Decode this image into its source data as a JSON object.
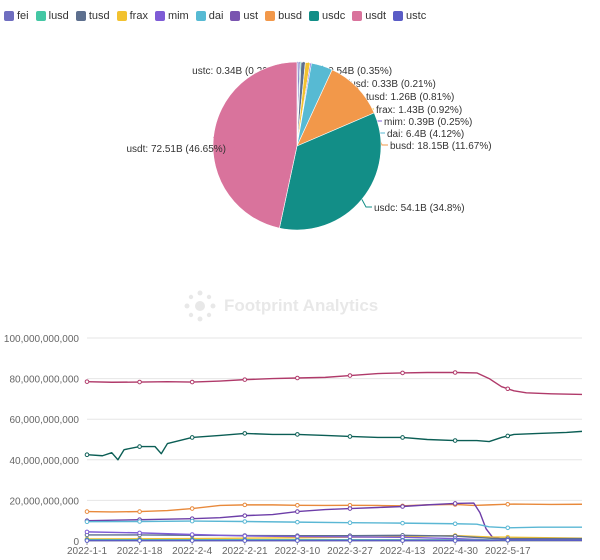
{
  "brand": {
    "watermark": "Footprint Analytics"
  },
  "legend": [
    {
      "name": "fei",
      "color": "#6f6ec0"
    },
    {
      "name": "lusd",
      "color": "#44c7a4"
    },
    {
      "name": "tusd",
      "color": "#5d6f8e"
    },
    {
      "name": "frax",
      "color": "#f2c230"
    },
    {
      "name": "mim",
      "color": "#7e5cd6"
    },
    {
      "name": "dai",
      "color": "#57bad3"
    },
    {
      "name": "ust",
      "color": "#7a55b0"
    },
    {
      "name": "busd",
      "color": "#f2984a"
    },
    {
      "name": "usdc",
      "color": "#128e87"
    },
    {
      "name": "usdt",
      "color": "#d9739c"
    },
    {
      "name": "ustc",
      "color": "#5a5cc6"
    }
  ],
  "chart_data": [
    {
      "type": "pie",
      "slices": [
        {
          "name": "ustc",
          "value": 0.34,
          "pct": 0.22,
          "label": "ustc: 0.34B (0.22%)",
          "color": "#5a5cc6"
        },
        {
          "name": "fei",
          "value": 0.54,
          "pct": 0.35,
          "label": "fei: 0.54B (0.35%)",
          "color": "#6f6ec0"
        },
        {
          "name": "lusd",
          "value": 0.33,
          "pct": 0.21,
          "label": "lusd: 0.33B (0.21%)",
          "color": "#44c7a4"
        },
        {
          "name": "tusd",
          "value": 1.26,
          "pct": 0.81,
          "label": "tusd: 1.26B (0.81%)",
          "color": "#5d6f8e"
        },
        {
          "name": "frax",
          "value": 1.43,
          "pct": 0.92,
          "label": "frax: 1.43B (0.92%)",
          "color": "#f2c230"
        },
        {
          "name": "mim",
          "value": 0.39,
          "pct": 0.25,
          "label": "mim: 0.39B (0.25%)",
          "color": "#7e5cd6"
        },
        {
          "name": "dai",
          "value": 6.4,
          "pct": 4.12,
          "label": "dai: 6.4B (4.12%)",
          "color": "#57bad3"
        },
        {
          "name": "busd",
          "value": 18.15,
          "pct": 11.67,
          "label": "busd: 18.15B (11.67%)",
          "color": "#f2984a"
        },
        {
          "name": "usdc",
          "value": 54.1,
          "pct": 34.8,
          "label": "usdc: 54.1B (34.8%)",
          "color": "#128e87"
        },
        {
          "name": "usdt",
          "value": 72.51,
          "pct": 46.65,
          "label": "usdt: 72.51B (46.65%)",
          "color": "#d9739c"
        }
      ]
    },
    {
      "type": "line",
      "x_labels": [
        "2022-1-1",
        "2022-1-18",
        "2022-2-4",
        "2022-2-21",
        "2022-3-10",
        "2022-3-27",
        "2022-4-13",
        "2022-4-30",
        "2022-5-17"
      ],
      "y_ticks": [
        0,
        20000000000,
        40000000000,
        60000000000,
        80000000000,
        100000000000
      ],
      "y_tick_labels": [
        "0",
        "20,000,000,000",
        "40,000,000,000",
        "60,000,000,000",
        "80,000,000,000",
        "100,000,000,000"
      ],
      "ylim": [
        0,
        100000000000
      ],
      "x_days": [
        0,
        17,
        34,
        51,
        68,
        85,
        102,
        119,
        136
      ],
      "grid": true,
      "series": [
        {
          "name": "usdt",
          "color": "#b03a6a",
          "points": [
            [
              0,
              78.5
            ],
            [
              8,
              78.2
            ],
            [
              17,
              78.3
            ],
            [
              26,
              78.5
            ],
            [
              34,
              78.3
            ],
            [
              43,
              78.8
            ],
            [
              51,
              79.5
            ],
            [
              60,
              80.0
            ],
            [
              68,
              80.3
            ],
            [
              77,
              80.6
            ],
            [
              85,
              81.5
            ],
            [
              94,
              82.5
            ],
            [
              102,
              82.8
            ],
            [
              110,
              83.0
            ],
            [
              119,
              83.0
            ],
            [
              126,
              82.8
            ],
            [
              130,
              80.0
            ],
            [
              134,
              76.0
            ],
            [
              138,
              74.0
            ],
            [
              142,
              73.0
            ],
            [
              150,
              72.5
            ],
            [
              160,
              72.2
            ]
          ]
        },
        {
          "name": "usdc",
          "color": "#0b5e55",
          "points": [
            [
              0,
              42.5
            ],
            [
              5,
              42.0
            ],
            [
              8,
              43.5
            ],
            [
              10,
              40.0
            ],
            [
              12,
              45.0
            ],
            [
              17,
              46.5
            ],
            [
              22,
              46.5
            ],
            [
              24,
              43.0
            ],
            [
              26,
              48.0
            ],
            [
              34,
              51.0
            ],
            [
              43,
              52.0
            ],
            [
              51,
              53.0
            ],
            [
              60,
              52.5
            ],
            [
              68,
              52.5
            ],
            [
              77,
              52.0
            ],
            [
              85,
              51.5
            ],
            [
              94,
              51.0
            ],
            [
              102,
              51.0
            ],
            [
              110,
              50.0
            ],
            [
              119,
              49.5
            ],
            [
              126,
              49.5
            ],
            [
              130,
              49.0
            ],
            [
              134,
              51.0
            ],
            [
              138,
              52.5
            ],
            [
              146,
              53.0
            ],
            [
              155,
              53.5
            ],
            [
              160,
              54.0
            ]
          ]
        },
        {
          "name": "busd",
          "color": "#e8893b",
          "points": [
            [
              0,
              14.5
            ],
            [
              8,
              14.3
            ],
            [
              17,
              14.5
            ],
            [
              26,
              15.0
            ],
            [
              34,
              16.0
            ],
            [
              43,
              17.5
            ],
            [
              51,
              17.8
            ],
            [
              60,
              17.8
            ],
            [
              68,
              17.6
            ],
            [
              77,
              17.5
            ],
            [
              85,
              17.6
            ],
            [
              94,
              17.5
            ],
            [
              102,
              17.3
            ],
            [
              110,
              17.8
            ],
            [
              119,
              18.0
            ],
            [
              125,
              17.5
            ],
            [
              130,
              17.8
            ],
            [
              134,
              18.0
            ],
            [
              138,
              18.2
            ],
            [
              150,
              18.0
            ],
            [
              160,
              18.1
            ]
          ]
        },
        {
          "name": "ust",
          "color": "#6d3ea8",
          "points": [
            [
              0,
              10.0
            ],
            [
              17,
              10.5
            ],
            [
              34,
              11.0
            ],
            [
              43,
              11.5
            ],
            [
              51,
              12.5
            ],
            [
              60,
              13.0
            ],
            [
              68,
              14.5
            ],
            [
              77,
              15.5
            ],
            [
              85,
              16.0
            ],
            [
              94,
              16.5
            ],
            [
              102,
              17.0
            ],
            [
              110,
              17.8
            ],
            [
              119,
              18.5
            ],
            [
              125,
              18.7
            ],
            [
              127,
              14.0
            ],
            [
              129,
              6.0
            ],
            [
              131,
              2.0
            ],
            [
              134,
              1.0
            ],
            [
              160,
              0.8
            ]
          ]
        },
        {
          "name": "dai",
          "color": "#5ab7d4",
          "points": [
            [
              0,
              9.5
            ],
            [
              17,
              9.6
            ],
            [
              34,
              9.8
            ],
            [
              51,
              9.6
            ],
            [
              68,
              9.3
            ],
            [
              85,
              9.0
            ],
            [
              102,
              8.8
            ],
            [
              119,
              8.5
            ],
            [
              126,
              8.3
            ],
            [
              130,
              7.0
            ],
            [
              136,
              6.5
            ],
            [
              146,
              6.8
            ],
            [
              160,
              6.8
            ]
          ]
        },
        {
          "name": "frax",
          "color": "#f2c230",
          "points": [
            [
              0,
              1.0
            ],
            [
              34,
              1.2
            ],
            [
              68,
              1.6
            ],
            [
              102,
              2.2
            ],
            [
              119,
              2.7
            ],
            [
              130,
              2.0
            ],
            [
              160,
              1.4
            ]
          ]
        },
        {
          "name": "tusd",
          "color": "#5d6f8e",
          "points": [
            [
              0,
              3.0
            ],
            [
              17,
              3.0
            ],
            [
              34,
              2.8
            ],
            [
              68,
              2.6
            ],
            [
              85,
              2.6
            ],
            [
              102,
              2.8
            ],
            [
              119,
              2.4
            ],
            [
              132,
              1.2
            ],
            [
              160,
              1.2
            ]
          ]
        },
        {
          "name": "fei",
          "color": "#6f6ec0",
          "points": [
            [
              0,
              0.6
            ],
            [
              68,
              0.6
            ],
            [
              119,
              0.55
            ],
            [
              160,
              0.54
            ]
          ]
        },
        {
          "name": "mim",
          "color": "#7e5cd6",
          "points": [
            [
              0,
              4.5
            ],
            [
              17,
              4.0
            ],
            [
              34,
              3.2
            ],
            [
              51,
              2.5
            ],
            [
              68,
              2.2
            ],
            [
              85,
              2.0
            ],
            [
              102,
              1.8
            ],
            [
              119,
              1.2
            ],
            [
              130,
              0.5
            ],
            [
              160,
              0.4
            ]
          ]
        },
        {
          "name": "lusd",
          "color": "#44c7a4",
          "points": [
            [
              0,
              0.5
            ],
            [
              68,
              0.5
            ],
            [
              119,
              0.4
            ],
            [
              160,
              0.33
            ]
          ]
        },
        {
          "name": "ustc",
          "color": "#5a5cc6",
          "points": [
            [
              0,
              0.2
            ],
            [
              130,
              0.2
            ],
            [
              134,
              0.4
            ],
            [
              160,
              0.34
            ]
          ]
        }
      ]
    }
  ]
}
